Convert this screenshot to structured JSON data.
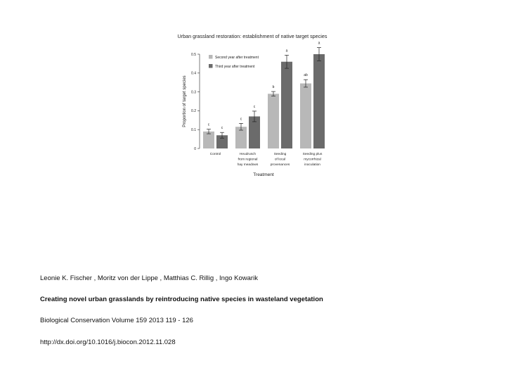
{
  "chart_data": {
    "type": "bar",
    "title": "Urban grassland restoration: establishment of native target species",
    "xlabel": "Treatment",
    "ylabel": "Proportion of target species",
    "ylim": [
      0,
      0.5
    ],
    "yticks": [
      "0",
      "0.1",
      "0.2",
      "0.3",
      "0.4",
      "0.5"
    ],
    "categories": [
      [
        "Control"
      ],
      [
        "Heudrusch",
        "from regional",
        "hay meadows"
      ],
      [
        "Seeding",
        "of local",
        "provenances"
      ],
      [
        "Seeding plus",
        "mycorrhizal",
        "inoculation"
      ]
    ],
    "legend_position": "top-left",
    "series": [
      {
        "name": "Second year after treatment",
        "color": "#b8b8b8",
        "values": [
          0.09,
          0.115,
          0.29,
          0.345
        ],
        "errors": [
          0.012,
          0.018,
          0.012,
          0.02
        ],
        "letters": [
          "c",
          "c",
          "b",
          "ab"
        ]
      },
      {
        "name": "Third year after treatment",
        "color": "#6b6b6b",
        "values": [
          0.07,
          0.17,
          0.46,
          0.5
        ],
        "errors": [
          0.015,
          0.028,
          0.035,
          0.035
        ],
        "letters": [
          "c",
          "c",
          "a",
          "a"
        ]
      }
    ]
  },
  "citation": {
    "authors": "Leonie K.  Fischer , Moritz von der  Lippe , Matthias C.  Rillig , Ingo  Kowarik",
    "title": "Creating novel urban grasslands by reintroducing native species in wasteland vegetation",
    "journal": "Biological Conservation Volume 159 2013 119 - 126",
    "doi": "http://dx.doi.org/10.1016/j.biocon.2012.11.028"
  }
}
